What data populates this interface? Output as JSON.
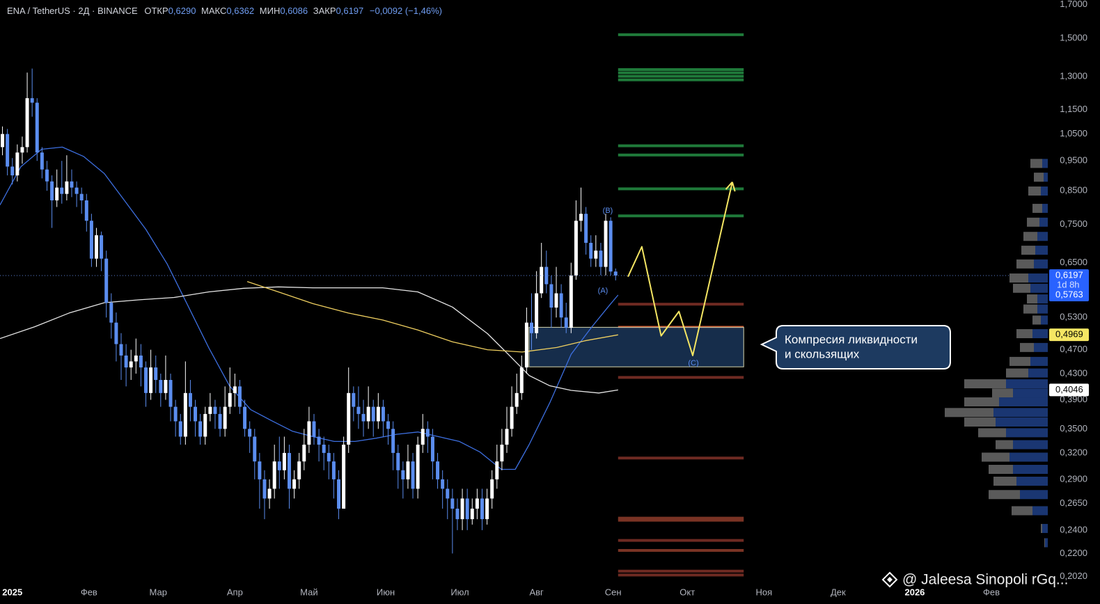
{
  "chart_data": {
    "type": "candlestick",
    "title": "ENA / TetherUS · 2Д · BINANCE",
    "legend_values": [
      {
        "label": "ОТКР",
        "value": "0,6290"
      },
      {
        "label": "МАКС",
        "value": "0,6362"
      },
      {
        "label": "МИН",
        "value": "0,6086"
      },
      {
        "label": "ЗАКР",
        "value": "0,6197"
      }
    ],
    "change": "−0,0092 (−1,46%)",
    "log_scale": true,
    "grid": false,
    "xlim": [
      -0.5,
      211.4
    ],
    "ylim": [
      0.197,
      1.73
    ],
    "xticks": [
      {
        "value": 2,
        "label": "2025"
      },
      {
        "value": 17.5,
        "label": "Фев"
      },
      {
        "value": 31.5,
        "label": "Мар"
      },
      {
        "value": 47,
        "label": "Апр"
      },
      {
        "value": 62,
        "label": "Май"
      },
      {
        "value": 77.5,
        "label": "Июн"
      },
      {
        "value": 92.5,
        "label": "Июл"
      },
      {
        "value": 108,
        "label": "Авг"
      },
      {
        "value": 123.5,
        "label": "Сен"
      },
      {
        "value": 138.5,
        "label": "Окт"
      },
      {
        "value": 154,
        "label": "Ноя"
      },
      {
        "value": 169,
        "label": "Дек"
      },
      {
        "value": 184.5,
        "label": "2026"
      },
      {
        "value": 200,
        "label": "Фев"
      }
    ],
    "yticks": [
      {
        "value": 1.7,
        "label": "1,7000"
      },
      {
        "value": 1.5,
        "label": "1,5000"
      },
      {
        "value": 1.3,
        "label": "1,3000"
      },
      {
        "value": 1.15,
        "label": "1,1500"
      },
      {
        "value": 1.05,
        "label": "1,0500"
      },
      {
        "value": 0.95,
        "label": "0,9500"
      },
      {
        "value": 0.85,
        "label": "0,8500"
      },
      {
        "value": 0.75,
        "label": "0,7500"
      },
      {
        "value": 0.65,
        "label": "0,6500"
      },
      {
        "value": 0.53,
        "label": "0,5300"
      },
      {
        "value": 0.47,
        "label": "0,4700"
      },
      {
        "value": 0.43,
        "label": "0,4300"
      },
      {
        "value": 0.39,
        "label": "0,3900"
      },
      {
        "value": 0.35,
        "label": "0,3500"
      },
      {
        "value": 0.32,
        "label": "0,3200"
      },
      {
        "value": 0.29,
        "label": "0,2900"
      },
      {
        "value": 0.265,
        "label": "0,2650"
      },
      {
        "value": 0.24,
        "label": "0,2400"
      },
      {
        "value": 0.22,
        "label": "0,2200"
      },
      {
        "value": 0.202,
        "label": "0,2020"
      }
    ],
    "up_color": "#ffffff",
    "down_color": "#5b8def",
    "open": [
      1.0,
      1.05,
      0.93,
      0.9,
      0.98,
      1.0,
      1.2,
      1.18,
      0.98,
      0.92,
      0.88,
      0.82,
      0.86,
      0.84,
      0.88,
      0.86,
      0.84,
      0.82,
      0.76,
      0.66,
      0.72,
      0.66,
      0.56,
      0.52,
      0.48,
      0.46,
      0.44,
      0.45,
      0.46,
      0.44,
      0.4,
      0.44,
      0.42,
      0.4,
      0.42,
      0.38,
      0.36,
      0.34,
      0.4,
      0.38,
      0.36,
      0.34,
      0.37,
      0.38,
      0.37,
      0.35,
      0.38,
      0.4,
      0.41,
      0.38,
      0.35,
      0.34,
      0.31,
      0.29,
      0.27,
      0.28,
      0.31,
      0.3,
      0.32,
      0.28,
      0.29,
      0.31,
      0.33,
      0.36,
      0.34,
      0.33,
      0.32,
      0.31,
      0.29,
      0.26,
      0.33,
      0.4,
      0.38,
      0.37,
      0.36,
      0.38,
      0.36,
      0.38,
      0.36,
      0.35,
      0.32,
      0.3,
      0.29,
      0.31,
      0.28,
      0.33,
      0.35,
      0.34,
      0.31,
      0.29,
      0.28,
      0.27,
      0.26,
      0.25,
      0.27,
      0.25,
      0.26,
      0.27,
      0.25,
      0.27,
      0.29,
      0.31,
      0.33,
      0.35,
      0.38,
      0.4,
      0.44,
      0.52,
      0.5,
      0.58,
      0.64,
      0.6,
      0.55,
      0.58,
      0.53,
      0.51,
      0.62,
      0.76,
      0.78,
      0.7,
      0.66,
      0.68,
      0.64,
      0.76,
      0.629
    ],
    "high": [
      1.08,
      1.07,
      0.96,
      1.01,
      1.04,
      1.32,
      1.34,
      1.2,
      1.0,
      0.95,
      0.9,
      0.92,
      0.95,
      0.97,
      0.92,
      0.88,
      0.86,
      0.84,
      0.78,
      0.74,
      0.73,
      0.68,
      0.58,
      0.54,
      0.5,
      0.48,
      0.47,
      0.49,
      0.48,
      0.45,
      0.47,
      0.46,
      0.43,
      0.46,
      0.43,
      0.39,
      0.37,
      0.45,
      0.42,
      0.39,
      0.37,
      0.38,
      0.4,
      0.39,
      0.38,
      0.41,
      0.44,
      0.43,
      0.42,
      0.39,
      0.36,
      0.35,
      0.32,
      0.3,
      0.29,
      0.33,
      0.34,
      0.34,
      0.33,
      0.3,
      0.32,
      0.35,
      0.38,
      0.37,
      0.35,
      0.34,
      0.33,
      0.32,
      0.3,
      0.34,
      0.44,
      0.41,
      0.41,
      0.39,
      0.41,
      0.39,
      0.4,
      0.39,
      0.37,
      0.36,
      0.33,
      0.31,
      0.33,
      0.32,
      0.34,
      0.37,
      0.36,
      0.35,
      0.32,
      0.3,
      0.29,
      0.28,
      0.27,
      0.28,
      0.28,
      0.27,
      0.28,
      0.28,
      0.28,
      0.3,
      0.33,
      0.35,
      0.38,
      0.41,
      0.43,
      0.46,
      0.55,
      0.58,
      0.63,
      0.7,
      0.68,
      0.62,
      0.64,
      0.6,
      0.56,
      0.65,
      0.82,
      0.86,
      0.8,
      0.72,
      0.72,
      0.7,
      0.78,
      0.77,
      0.6362
    ],
    "low": [
      0.97,
      0.9,
      0.87,
      0.88,
      0.94,
      0.98,
      1.12,
      0.95,
      0.89,
      0.85,
      0.74,
      0.8,
      0.81,
      0.82,
      0.83,
      0.8,
      0.78,
      0.73,
      0.64,
      0.64,
      0.63,
      0.53,
      0.49,
      0.45,
      0.42,
      0.41,
      0.42,
      0.43,
      0.41,
      0.38,
      0.39,
      0.4,
      0.38,
      0.39,
      0.36,
      0.34,
      0.33,
      0.33,
      0.36,
      0.34,
      0.33,
      0.33,
      0.36,
      0.35,
      0.34,
      0.34,
      0.37,
      0.38,
      0.37,
      0.34,
      0.32,
      0.29,
      0.26,
      0.25,
      0.26,
      0.27,
      0.28,
      0.29,
      0.26,
      0.27,
      0.28,
      0.3,
      0.32,
      0.33,
      0.31,
      0.3,
      0.29,
      0.27,
      0.25,
      0.26,
      0.32,
      0.36,
      0.35,
      0.34,
      0.35,
      0.34,
      0.35,
      0.34,
      0.33,
      0.3,
      0.28,
      0.27,
      0.28,
      0.27,
      0.27,
      0.32,
      0.32,
      0.29,
      0.28,
      0.26,
      0.25,
      0.22,
      0.24,
      0.24,
      0.24,
      0.245,
      0.25,
      0.24,
      0.245,
      0.26,
      0.28,
      0.3,
      0.32,
      0.34,
      0.37,
      0.39,
      0.43,
      0.47,
      0.49,
      0.57,
      0.58,
      0.51,
      0.53,
      0.51,
      0.5,
      0.5,
      0.61,
      0.73,
      0.67,
      0.64,
      0.64,
      0.62,
      0.62,
      0.62,
      0.6086
    ],
    "close": [
      1.05,
      0.93,
      0.9,
      0.98,
      1.0,
      1.2,
      1.18,
      0.98,
      0.92,
      0.88,
      0.82,
      0.86,
      0.84,
      0.88,
      0.86,
      0.84,
      0.82,
      0.76,
      0.66,
      0.72,
      0.66,
      0.56,
      0.52,
      0.48,
      0.46,
      0.44,
      0.45,
      0.46,
      0.44,
      0.4,
      0.44,
      0.42,
      0.4,
      0.42,
      0.38,
      0.36,
      0.34,
      0.4,
      0.38,
      0.36,
      0.34,
      0.37,
      0.38,
      0.37,
      0.35,
      0.38,
      0.4,
      0.41,
      0.38,
      0.35,
      0.34,
      0.31,
      0.29,
      0.27,
      0.28,
      0.31,
      0.3,
      0.32,
      0.28,
      0.29,
      0.31,
      0.33,
      0.36,
      0.34,
      0.33,
      0.32,
      0.31,
      0.29,
      0.26,
      0.33,
      0.4,
      0.38,
      0.37,
      0.36,
      0.38,
      0.36,
      0.38,
      0.36,
      0.35,
      0.32,
      0.3,
      0.29,
      0.31,
      0.28,
      0.33,
      0.35,
      0.34,
      0.31,
      0.29,
      0.28,
      0.27,
      0.26,
      0.25,
      0.27,
      0.25,
      0.26,
      0.27,
      0.25,
      0.27,
      0.29,
      0.31,
      0.33,
      0.35,
      0.38,
      0.4,
      0.44,
      0.52,
      0.5,
      0.58,
      0.64,
      0.6,
      0.55,
      0.58,
      0.53,
      0.51,
      0.62,
      0.76,
      0.78,
      0.7,
      0.66,
      0.68,
      0.64,
      0.76,
      0.629,
      0.6197
    ],
    "moving_averages": [
      {
        "color": "#3d6fe0",
        "x": [
          -0.5,
          3.7,
          7.9,
          12.1,
          16.4,
          20.6,
          24.8,
          29,
          33.3,
          37.5,
          41.7,
          45.9,
          50.2,
          54.4,
          58.6,
          62.8,
          67.1,
          71.3,
          75.5,
          79.7,
          84,
          88.2,
          92.4,
          96.6,
          100.9,
          103.7,
          106.5,
          110.7,
          115,
          119.2,
          122.7,
          124.5
        ],
        "values": [
          0.806,
          0.929,
          0.992,
          1.0,
          0.966,
          0.906,
          0.817,
          0.736,
          0.647,
          0.554,
          0.474,
          0.411,
          0.376,
          0.361,
          0.347,
          0.34,
          0.334,
          0.334,
          0.338,
          0.343,
          0.346,
          0.34,
          0.334,
          0.321,
          0.301,
          0.301,
          0.33,
          0.386,
          0.462,
          0.512,
          0.554,
          0.5763
        ]
      },
      {
        "color": "#e6e6e6",
        "x": [
          -0.5,
          6.5,
          13.5,
          20.6,
          27.6,
          34.7,
          41.7,
          48.8,
          55.8,
          62.8,
          69.9,
          76.9,
          84,
          91,
          98.1,
          102.3,
          106.5,
          110.7,
          115,
          120.6,
          124.5
        ],
        "values": [
          0.49,
          0.512,
          0.539,
          0.56,
          0.566,
          0.571,
          0.583,
          0.591,
          0.594,
          0.592,
          0.592,
          0.592,
          0.583,
          0.551,
          0.499,
          0.462,
          0.427,
          0.411,
          0.404,
          0.4,
          0.4046
        ]
      },
      {
        "color": "#f0d060",
        "x": [
          49.5,
          55.8,
          62.8,
          69.9,
          76.9,
          84,
          91,
          98.1,
          105.1,
          112.1,
          117.8,
          124.5
        ],
        "values": [
          0.606,
          0.583,
          0.558,
          0.539,
          0.525,
          0.506,
          0.484,
          0.47,
          0.466,
          0.474,
          0.486,
          0.4969
        ]
      }
    ],
    "levels_x": [
      124.5,
      149.9
    ],
    "levels": [
      {
        "price": 1.52,
        "color": "#1f7a3a"
      },
      {
        "price": 1.335,
        "color": "#1f7a3a"
      },
      {
        "price": 1.319,
        "color": "#1f7a3a"
      },
      {
        "price": 1.302,
        "color": "#1f7a3a"
      },
      {
        "price": 1.285,
        "color": "#1f7a3a"
      },
      {
        "price": 1.005,
        "color": "#1f7a3a"
      },
      {
        "price": 0.971,
        "color": "#1f7a3a"
      },
      {
        "price": 0.856,
        "color": "#1f7a3a"
      },
      {
        "price": 0.774,
        "color": "#1f7a3a"
      },
      {
        "price": 0.557,
        "color": "#6e2a22"
      },
      {
        "price": 0.511,
        "color": "#c4552c"
      },
      {
        "price": 0.424,
        "color": "#6e2a22"
      },
      {
        "price": 0.314,
        "color": "#6e2a22"
      },
      {
        "price": 0.251,
        "color": "#7a3324"
      },
      {
        "price": 0.249,
        "color": "#7a3324"
      },
      {
        "price": 0.231,
        "color": "#6e2a22"
      },
      {
        "price": 0.2225,
        "color": "#7a3324"
      },
      {
        "price": 0.206,
        "color": "#6e2a22"
      },
      {
        "price": 0.203,
        "color": "#6e2a22"
      }
    ],
    "zone": {
      "x": [
        106.5,
        149.9
      ],
      "price": [
        0.441,
        0.511
      ],
      "color": "#1a3558"
    },
    "projection": {
      "color": "#f5e663",
      "x": [
        126.5,
        129.3,
        133.2,
        136.8,
        139.6,
        147.6
      ],
      "values": [
        0.617,
        0.69,
        0.495,
        0.542,
        0.46,
        0.878
      ]
    },
    "waves": [
      "(A)",
      "(B)",
      "(C)"
    ],
    "note": [
      "Компресия ликвидности",
      "и скользящих"
    ],
    "volume_profile": {
      "price": [
        0.941,
        0.894,
        0.849,
        0.796,
        0.756,
        0.717,
        0.681,
        0.647,
        0.614,
        0.591,
        0.568,
        0.547,
        0.525,
        0.499,
        0.474,
        0.45,
        0.431,
        0.414,
        0.4,
        0.387,
        0.372,
        0.359,
        0.345,
        0.33,
        0.315,
        0.301,
        0.288,
        0.274,
        0.258,
        0.2415,
        0.229
      ],
      "gray": [
        17,
        14,
        18,
        14,
        18,
        20,
        20,
        25,
        27,
        25,
        15,
        20,
        12,
        23,
        20,
        30,
        32,
        60,
        30,
        50,
        70,
        45,
        40,
        25,
        40,
        35,
        33,
        45,
        30,
        2,
        1
      ],
      "blue": [
        8,
        6,
        10,
        8,
        12,
        15,
        18,
        20,
        28,
        25,
        15,
        15,
        10,
        22,
        20,
        25,
        28,
        60,
        50,
        70,
        78,
        75,
        60,
        50,
        55,
        50,
        45,
        40,
        22,
        8,
        4
      ],
      "colors": [
        "#5a5a5a",
        "#1a3672"
      ]
    },
    "price_tags": [
      {
        "value": 0.6197,
        "label": "0,6197",
        "sub": "1d 8h",
        "color": "#2962ff",
        "text_color": "#ffffff"
      },
      {
        "value": 0.5763,
        "label": "0,5763",
        "color": "#2962ff",
        "text_color": "#ffffff"
      },
      {
        "value": 0.4969,
        "label": "0,4969",
        "color": "#f5e663",
        "text_color": "#000000"
      },
      {
        "value": 0.4046,
        "label": "0,4046",
        "color": "#ffffff",
        "text_color": "#000000"
      }
    ],
    "watermark": "@ Jaleesa Sinopoli rGq..."
  }
}
